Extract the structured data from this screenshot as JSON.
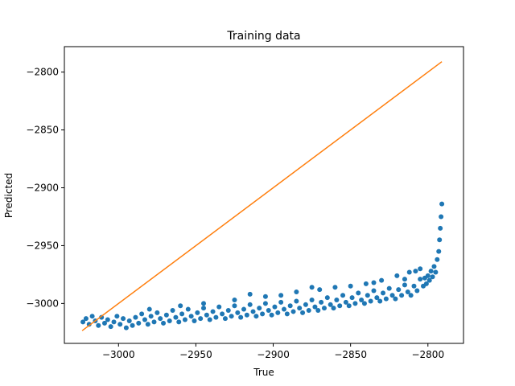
{
  "chart_data": {
    "type": "scatter",
    "title": "Training data",
    "xlabel": "True",
    "ylabel": "Predicted",
    "xlim": [
      -3035,
      -2777
    ],
    "ylim": [
      -3034.5,
      -2778
    ],
    "xticks": [
      -3000,
      -2950,
      -2900,
      -2850,
      -2800
    ],
    "xtick_labels": [
      "−3000",
      "−2950",
      "−2900",
      "−2850",
      "−2800"
    ],
    "yticks": [
      -3000,
      -2950,
      -2900,
      -2850,
      -2800
    ],
    "ytick_labels": [
      "−3000",
      "−2950",
      "−2900",
      "−2850",
      "−2800"
    ],
    "grid": false,
    "legend": "none",
    "series": [
      {
        "kind": "scatter",
        "color": "#1f77b4",
        "points": [
          [
            -3023,
            -3016
          ],
          [
            -3021,
            -3013
          ],
          [
            -3019,
            -3018
          ],
          [
            -3017,
            -3011
          ],
          [
            -3015,
            -3015
          ],
          [
            -3013,
            -3019
          ],
          [
            -3011,
            -3012
          ],
          [
            -3009,
            -3017
          ],
          [
            -3007,
            -3014
          ],
          [
            -3005,
            -3020
          ],
          [
            -3003,
            -3016
          ],
          [
            -3001,
            -3011
          ],
          [
            -2999,
            -3018
          ],
          [
            -2997,
            -3013
          ],
          [
            -2995,
            -3021
          ],
          [
            -2993,
            -3015
          ],
          [
            -2991,
            -3019
          ],
          [
            -2989,
            -3012
          ],
          [
            -2987,
            -3017
          ],
          [
            -2985,
            -3009
          ],
          [
            -2983,
            -3014
          ],
          [
            -2981,
            -3018
          ],
          [
            -2979,
            -3011
          ],
          [
            -2977,
            -3016
          ],
          [
            -2975,
            -3008
          ],
          [
            -2973,
            -3013
          ],
          [
            -2971,
            -3017
          ],
          [
            -2969,
            -3010
          ],
          [
            -2967,
            -3015
          ],
          [
            -2965,
            -3006
          ],
          [
            -2963,
            -3012
          ],
          [
            -2961,
            -3016
          ],
          [
            -2959,
            -3009
          ],
          [
            -2957,
            -3014
          ],
          [
            -2955,
            -3005
          ],
          [
            -2953,
            -3011
          ],
          [
            -2951,
            -3015
          ],
          [
            -2949,
            -3008
          ],
          [
            -2947,
            -3013
          ],
          [
            -2945,
            -3004
          ],
          [
            -2943,
            -3010
          ],
          [
            -2941,
            -3014
          ],
          [
            -2939,
            -3007
          ],
          [
            -2937,
            -3012
          ],
          [
            -2935,
            -3003
          ],
          [
            -2933,
            -3009
          ],
          [
            -2931,
            -3013
          ],
          [
            -2929,
            -3006
          ],
          [
            -2927,
            -3011
          ],
          [
            -2925,
            -3002
          ],
          [
            -2923,
            -3008
          ],
          [
            -2921,
            -3012
          ],
          [
            -2919,
            -3005
          ],
          [
            -2917,
            -3010
          ],
          [
            -2915,
            -3001
          ],
          [
            -2913,
            -3007
          ],
          [
            -2911,
            -3011
          ],
          [
            -2909,
            -3004
          ],
          [
            -2907,
            -3009
          ],
          [
            -2905,
            -3000
          ],
          [
            -2903,
            -3006
          ],
          [
            -2901,
            -3010
          ],
          [
            -2899,
            -3003
          ],
          [
            -2897,
            -3008
          ],
          [
            -2895,
            -2999
          ],
          [
            -2893,
            -3005
          ],
          [
            -2891,
            -3009
          ],
          [
            -2889,
            -3002
          ],
          [
            -2887,
            -3007
          ],
          [
            -2885,
            -2998
          ],
          [
            -2883,
            -3004
          ],
          [
            -2881,
            -3008
          ],
          [
            -2879,
            -3001
          ],
          [
            -2877,
            -3006
          ],
          [
            -2875,
            -2997
          ],
          [
            -2873,
            -3003
          ],
          [
            -2871,
            -3006
          ],
          [
            -2869,
            -2999
          ],
          [
            -2867,
            -3004
          ],
          [
            -2865,
            -2995
          ],
          [
            -2863,
            -3001
          ],
          [
            -2861,
            -3004
          ],
          [
            -2859,
            -2997
          ],
          [
            -2857,
            -3002
          ],
          [
            -2855,
            -2993
          ],
          [
            -2853,
            -2999
          ],
          [
            -2851,
            -3002
          ],
          [
            -2849,
            -2995
          ],
          [
            -2847,
            -3000
          ],
          [
            -2845,
            -2991
          ],
          [
            -2843,
            -2997
          ],
          [
            -2841,
            -3000
          ],
          [
            -2839,
            -2993
          ],
          [
            -2837,
            -2998
          ],
          [
            -2835,
            -2989
          ],
          [
            -2833,
            -2995
          ],
          [
            -2831,
            -2998
          ],
          [
            -2829,
            -2991
          ],
          [
            -2827,
            -2996
          ],
          [
            -2825,
            -2987
          ],
          [
            -2823,
            -2993
          ],
          [
            -2821,
            -2996
          ],
          [
            -2819,
            -2988
          ],
          [
            -2817,
            -2993
          ],
          [
            -2815,
            -2984
          ],
          [
            -2813,
            -2990
          ],
          [
            -2811,
            -2993
          ],
          [
            -2809,
            -2985
          ],
          [
            -2807,
            -2989
          ],
          [
            -2805,
            -2979
          ],
          [
            -2803,
            -2985
          ],
          [
            -2802,
            -2978
          ],
          [
            -2801,
            -2983
          ],
          [
            -2800,
            -2976
          ],
          [
            -2799,
            -2980
          ],
          [
            -2798,
            -2972
          ],
          [
            -2797,
            -2977
          ],
          [
            -2796,
            -2968
          ],
          [
            -2795,
            -2973
          ],
          [
            -2794,
            -2962
          ],
          [
            -2793,
            -2955
          ],
          [
            -2792.5,
            -2945
          ],
          [
            -2792,
            -2935
          ],
          [
            -2791.5,
            -2925
          ],
          [
            -2791,
            -2914
          ],
          [
            -2915,
            -2992
          ],
          [
            -2895,
            -2993
          ],
          [
            -2875,
            -2986
          ],
          [
            -2860,
            -2986
          ],
          [
            -2840,
            -2983
          ],
          [
            -2830,
            -2980
          ],
          [
            -2820,
            -2976
          ],
          [
            -2812,
            -2973
          ],
          [
            -2808,
            -2972
          ],
          [
            -2980,
            -3005
          ],
          [
            -2960,
            -3002
          ],
          [
            -2945,
            -3000
          ],
          [
            -2925,
            -2997
          ],
          [
            -2905,
            -2994
          ],
          [
            -2885,
            -2990
          ],
          [
            -2870,
            -2988
          ],
          [
            -2850,
            -2985
          ],
          [
            -2835,
            -2982
          ],
          [
            -2815,
            -2979
          ],
          [
            -2805,
            -2970
          ]
        ]
      },
      {
        "kind": "line",
        "color": "#ff7f0e",
        "points": [
          [
            -3023.5,
            -3023.5
          ],
          [
            -2791,
            -2791
          ]
        ]
      }
    ]
  }
}
